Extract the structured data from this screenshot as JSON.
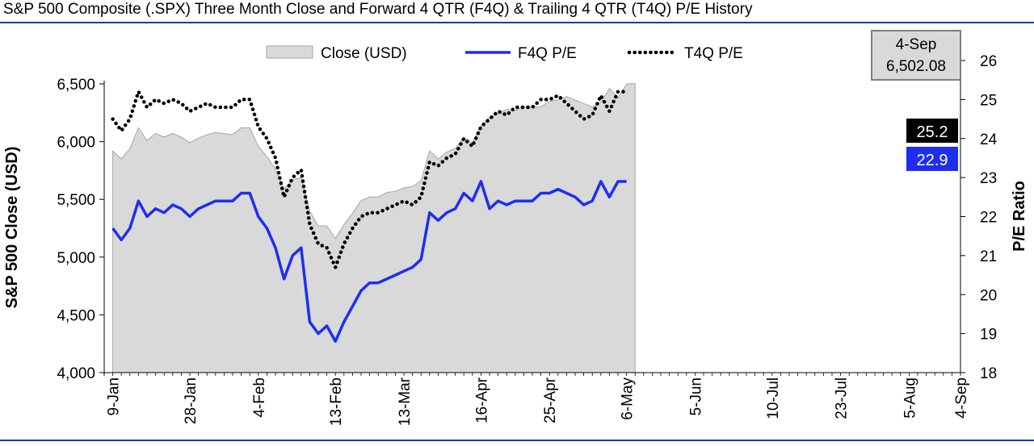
{
  "title": "S&P 500 Composite (.SPX) Three Month Close and Forward 4 QTR (F4Q) & Trailing 4 QTR (T4Q) P/E History",
  "colors": {
    "rule": "#1a33c8",
    "close_fill": "#d9d9d9",
    "close_stroke": "#a6a6a6",
    "f4q_line": "#1e2ef0",
    "t4q_line": "#000000",
    "t4q_badge_bg": "#000000",
    "f4q_badge_bg": "#1e2ef0",
    "badge_text": "#ffffff",
    "callout_bg": "#d9d9d9",
    "callout_border": "#7f7f7f"
  },
  "legend": {
    "close_label": "Close (USD)",
    "f4q_label": "F4Q P/E",
    "t4q_label": "T4Q P/E"
  },
  "callout": {
    "date": "4-Sep",
    "value": "6,502.08"
  },
  "badges": {
    "t4q": "25.2",
    "f4q": "22.9"
  },
  "chart_data": {
    "type": "area+line",
    "title": "S&P 500 Composite (.SPX) Three Month Close and Forward 4 QTR (F4Q) & Trailing 4 QTR (T4Q) P/E History",
    "x_index_range": [
      0,
      100
    ],
    "x_ticks": [
      {
        "i": 1,
        "label": "9-Jan"
      },
      {
        "i": 10,
        "label": "28-Jan"
      },
      {
        "i": 18,
        "label": "4-Feb"
      },
      {
        "i": 27,
        "label": "13-Feb"
      },
      {
        "i": 35,
        "label": "13-Mar"
      },
      {
        "i": 44,
        "label": "16-Apr"
      },
      {
        "i": 52,
        "label": "25-Apr"
      },
      {
        "i": 61,
        "label": "6-May"
      },
      {
        "i": 69,
        "label": "5-Jun"
      },
      {
        "i": 78,
        "label": "10-Jul"
      },
      {
        "i": 86,
        "label": "23-Jul"
      },
      {
        "i": 94,
        "label": "5-Aug"
      },
      {
        "i": 100,
        "label": "4-Sep"
      }
    ],
    "y_left": {
      "label": "S&P 500 Close (USD)",
      "min": 4000,
      "max": 6500,
      "ticks": [
        {
          "v": 4000,
          "label": "4,000"
        },
        {
          "v": 4500,
          "label": "4,500"
        },
        {
          "v": 5000,
          "label": "5,000"
        },
        {
          "v": 5500,
          "label": "5,500"
        },
        {
          "v": 6000,
          "label": "6,000"
        },
        {
          "v": 6500,
          "label": "6,500"
        }
      ]
    },
    "y_right": {
      "label": "P/E Ratio",
      "min": 18,
      "max": 26,
      "ticks": [
        {
          "v": 18,
          "label": "18"
        },
        {
          "v": 19,
          "label": "19"
        },
        {
          "v": 20,
          "label": "20"
        },
        {
          "v": 21,
          "label": "21"
        },
        {
          "v": 22,
          "label": "22"
        },
        {
          "v": 23,
          "label": "23"
        },
        {
          "v": 24,
          "label": "24"
        },
        {
          "v": 25,
          "label": "25"
        },
        {
          "v": 26,
          "label": "26"
        }
      ]
    },
    "series": [
      {
        "name": "Close (USD)",
        "axis": "left",
        "style": "area",
        "points": [
          [
            1,
            5920
          ],
          [
            2,
            5850
          ],
          [
            3,
            5940
          ],
          [
            4,
            6120
          ],
          [
            5,
            6010
          ],
          [
            6,
            6070
          ],
          [
            7,
            6040
          ],
          [
            8,
            6070
          ],
          [
            9,
            6040
          ],
          [
            10,
            5990
          ],
          [
            11,
            6030
          ],
          [
            12,
            6060
          ],
          [
            13,
            6080
          ],
          [
            14,
            6070
          ],
          [
            15,
            6060
          ],
          [
            16,
            6120
          ],
          [
            17,
            6120
          ],
          [
            18,
            5960
          ],
          [
            19,
            5870
          ],
          [
            20,
            5760
          ],
          [
            21,
            5590
          ],
          [
            22,
            5670
          ],
          [
            23,
            5690
          ],
          [
            24,
            5400
          ],
          [
            25,
            5270
          ],
          [
            26,
            5270
          ],
          [
            27,
            5160
          ],
          [
            28,
            5280
          ],
          [
            29,
            5380
          ],
          [
            30,
            5490
          ],
          [
            31,
            5520
          ],
          [
            32,
            5520
          ],
          [
            33,
            5560
          ],
          [
            34,
            5570
          ],
          [
            35,
            5600
          ],
          [
            36,
            5610
          ],
          [
            37,
            5660
          ],
          [
            38,
            5920
          ],
          [
            39,
            5850
          ],
          [
            40,
            5910
          ],
          [
            41,
            5940
          ],
          [
            42,
            6040
          ],
          [
            43,
            5990
          ],
          [
            44,
            6140
          ],
          [
            45,
            6210
          ],
          [
            46,
            6240
          ],
          [
            47,
            6280
          ],
          [
            48,
            6270
          ],
          [
            49,
            6300
          ],
          [
            50,
            6300
          ],
          [
            51,
            6300
          ],
          [
            52,
            6350
          ],
          [
            53,
            6360
          ],
          [
            54,
            6390
          ],
          [
            55,
            6360
          ],
          [
            56,
            6330
          ],
          [
            57,
            6300
          ],
          [
            58,
            6340
          ],
          [
            59,
            6460
          ],
          [
            60,
            6380
          ],
          [
            61,
            6500
          ],
          [
            62,
            6502.08
          ]
        ]
      },
      {
        "name": "F4Q P/E",
        "axis": "right",
        "style": "solid",
        "points": [
          [
            1,
            21.7
          ],
          [
            2,
            21.4
          ],
          [
            3,
            21.7
          ],
          [
            4,
            22.4
          ],
          [
            5,
            22.0
          ],
          [
            6,
            22.2
          ],
          [
            7,
            22.1
          ],
          [
            8,
            22.3
          ],
          [
            9,
            22.2
          ],
          [
            10,
            22.0
          ],
          [
            11,
            22.2
          ],
          [
            12,
            22.3
          ],
          [
            13,
            22.4
          ],
          [
            14,
            22.4
          ],
          [
            15,
            22.4
          ],
          [
            16,
            22.6
          ],
          [
            17,
            22.6
          ],
          [
            18,
            22.0
          ],
          [
            19,
            21.7
          ],
          [
            20,
            21.2
          ],
          [
            21,
            20.4
          ],
          [
            22,
            21.0
          ],
          [
            23,
            21.2
          ],
          [
            24,
            19.3
          ],
          [
            25,
            19.0
          ],
          [
            26,
            19.2
          ],
          [
            27,
            18.8
          ],
          [
            28,
            19.3
          ],
          [
            29,
            19.7
          ],
          [
            30,
            20.1
          ],
          [
            31,
            20.3
          ],
          [
            32,
            20.3
          ],
          [
            33,
            20.4
          ],
          [
            34,
            20.5
          ],
          [
            35,
            20.6
          ],
          [
            36,
            20.7
          ],
          [
            37,
            20.9
          ],
          [
            38,
            22.1
          ],
          [
            39,
            21.9
          ],
          [
            40,
            22.1
          ],
          [
            41,
            22.2
          ],
          [
            42,
            22.6
          ],
          [
            43,
            22.4
          ],
          [
            44,
            22.9
          ],
          [
            45,
            22.2
          ],
          [
            46,
            22.4
          ],
          [
            47,
            22.3
          ],
          [
            48,
            22.4
          ],
          [
            49,
            22.4
          ],
          [
            50,
            22.4
          ],
          [
            51,
            22.6
          ],
          [
            52,
            22.6
          ],
          [
            53,
            22.7
          ],
          [
            54,
            22.6
          ],
          [
            55,
            22.5
          ],
          [
            56,
            22.3
          ],
          [
            57,
            22.4
          ],
          [
            58,
            22.9
          ],
          [
            59,
            22.5
          ],
          [
            60,
            22.9
          ],
          [
            61,
            22.9
          ]
        ]
      },
      {
        "name": "T4Q P/E",
        "axis": "right",
        "style": "dotted",
        "points": [
          [
            1,
            24.5
          ],
          [
            2,
            24.2
          ],
          [
            3,
            24.5
          ],
          [
            4,
            25.2
          ],
          [
            5,
            24.8
          ],
          [
            6,
            25.0
          ],
          [
            7,
            24.9
          ],
          [
            8,
            25.0
          ],
          [
            9,
            24.9
          ],
          [
            10,
            24.7
          ],
          [
            11,
            24.8
          ],
          [
            12,
            24.9
          ],
          [
            13,
            24.8
          ],
          [
            14,
            24.8
          ],
          [
            15,
            24.8
          ],
          [
            16,
            25.0
          ],
          [
            17,
            25.0
          ],
          [
            18,
            24.3
          ],
          [
            19,
            24.0
          ],
          [
            20,
            23.5
          ],
          [
            21,
            22.5
          ],
          [
            22,
            23.0
          ],
          [
            23,
            23.2
          ],
          [
            24,
            21.8
          ],
          [
            25,
            21.3
          ],
          [
            26,
            21.2
          ],
          [
            27,
            20.7
          ],
          [
            28,
            21.3
          ],
          [
            29,
            21.7
          ],
          [
            30,
            22.0
          ],
          [
            31,
            22.1
          ],
          [
            32,
            22.1
          ],
          [
            33,
            22.2
          ],
          [
            34,
            22.3
          ],
          [
            35,
            22.4
          ],
          [
            36,
            22.3
          ],
          [
            37,
            22.5
          ],
          [
            38,
            23.4
          ],
          [
            39,
            23.3
          ],
          [
            40,
            23.5
          ],
          [
            41,
            23.6
          ],
          [
            42,
            24.0
          ],
          [
            43,
            23.8
          ],
          [
            44,
            24.3
          ],
          [
            45,
            24.5
          ],
          [
            46,
            24.7
          ],
          [
            47,
            24.6
          ],
          [
            48,
            24.8
          ],
          [
            49,
            24.8
          ],
          [
            50,
            24.8
          ],
          [
            51,
            25.0
          ],
          [
            52,
            25.0
          ],
          [
            53,
            25.1
          ],
          [
            54,
            24.9
          ],
          [
            55,
            24.7
          ],
          [
            56,
            24.5
          ],
          [
            57,
            24.6
          ],
          [
            58,
            25.1
          ],
          [
            59,
            24.7
          ],
          [
            60,
            25.2
          ],
          [
            61,
            25.2
          ]
        ]
      }
    ],
    "annotations": [
      {
        "type": "callout",
        "text": "4-Sep 6,502.08"
      },
      {
        "type": "badge",
        "series": "T4Q P/E",
        "text": "25.2"
      },
      {
        "type": "badge",
        "series": "F4Q P/E",
        "text": "22.9"
      }
    ]
  }
}
